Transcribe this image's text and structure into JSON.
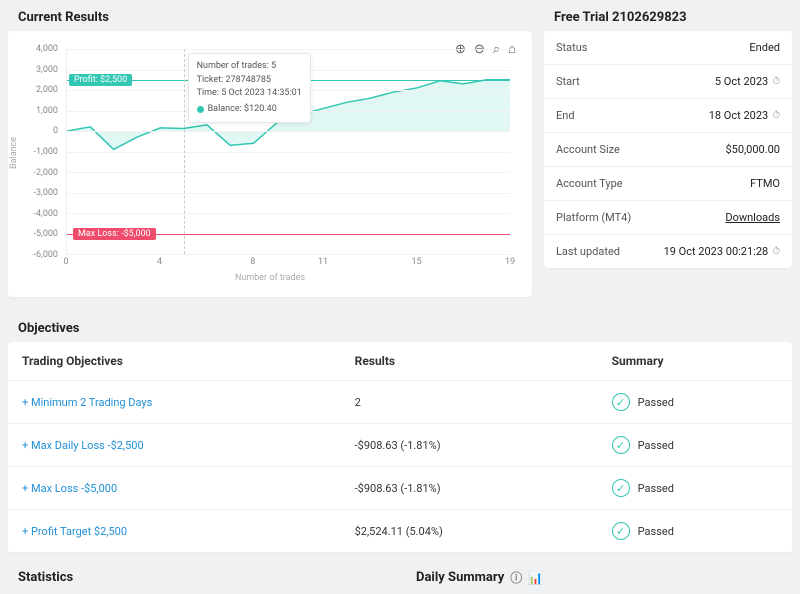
{
  "titles": {
    "current_results": "Current Results",
    "free_trial": "Free Trial 2102629823",
    "objectives": "Objectives",
    "statistics": "Statistics",
    "daily_summary": "Daily Summary"
  },
  "chart": {
    "type": "line+area",
    "x_label": "Number of trades",
    "y_label": "Balance",
    "xlim": [
      0,
      19
    ],
    "ylim": [
      -6000,
      4000
    ],
    "ytick_step": 1000,
    "y_ticks": [
      "4,000",
      "3,000",
      "2,000",
      "1,000",
      "0",
      "-1,000",
      "-2,000",
      "-3,000",
      "-4,000",
      "-5,000",
      "-6,000"
    ],
    "x_ticks": [
      {
        "pos": 0,
        "label": "0"
      },
      {
        "pos": 4,
        "label": "4"
      },
      {
        "pos": 8,
        "label": "8"
      },
      {
        "pos": 11,
        "label": "11"
      },
      {
        "pos": 15,
        "label": "15"
      },
      {
        "pos": 19,
        "label": "19"
      }
    ],
    "series_color": "#31c7b2",
    "area_opacity": 0.15,
    "grid_color": "#f2f2f2",
    "background_color": "#ffffff",
    "profit_line": {
      "value": 2500,
      "label": "Profit: $2,500",
      "color": "#31c7b2"
    },
    "maxloss_line": {
      "value": -5000,
      "label": "Max Loss: -$5,000",
      "color": "#ef4b6c"
    },
    "hover_x": 5,
    "tooltip": {
      "line1": "Number of trades: 5",
      "line2": "Ticket: 278748785",
      "line3": "Time: 5 Oct 2023 14:35:01",
      "balance_label": "Balance: $120.40"
    },
    "data": [
      {
        "x": 0,
        "y": 0
      },
      {
        "x": 1,
        "y": 200
      },
      {
        "x": 2,
        "y": -900
      },
      {
        "x": 3,
        "y": -300
      },
      {
        "x": 4,
        "y": 150
      },
      {
        "x": 5,
        "y": 120
      },
      {
        "x": 6,
        "y": 300
      },
      {
        "x": 7,
        "y": -700
      },
      {
        "x": 8,
        "y": -600
      },
      {
        "x": 9,
        "y": 400
      },
      {
        "x": 10,
        "y": 800
      },
      {
        "x": 11,
        "y": 1100
      },
      {
        "x": 12,
        "y": 1400
      },
      {
        "x": 13,
        "y": 1600
      },
      {
        "x": 14,
        "y": 1900
      },
      {
        "x": 15,
        "y": 2100
      },
      {
        "x": 16,
        "y": 2450
      },
      {
        "x": 17,
        "y": 2300
      },
      {
        "x": 18,
        "y": 2500
      },
      {
        "x": 19,
        "y": 2500
      }
    ]
  },
  "trial": {
    "rows": [
      {
        "label": "Status",
        "value": "Ended",
        "icon": null,
        "link": false
      },
      {
        "label": "Start",
        "value": "5 Oct 2023",
        "icon": "clock",
        "link": false
      },
      {
        "label": "End",
        "value": "18 Oct 2023",
        "icon": "clock",
        "link": false
      },
      {
        "label": "Account Size",
        "value": "$50,000.00",
        "icon": null,
        "link": false
      },
      {
        "label": "Account Type",
        "value": "FTMO",
        "icon": null,
        "link": false
      },
      {
        "label": "Platform (MT4)",
        "value": "Downloads",
        "icon": null,
        "link": true
      },
      {
        "label": "Last updated",
        "value": "19 Oct 2023 00:21:28",
        "icon": "clock",
        "link": false
      }
    ]
  },
  "objectives_table": {
    "headers": {
      "a": "Trading Objectives",
      "b": "Results",
      "c": "Summary"
    },
    "rows": [
      {
        "objective": "Minimum 2 Trading Days",
        "result": "2",
        "summary": "Passed"
      },
      {
        "objective": "Max Daily Loss -$2,500",
        "result": "-$908.63 (-1.81%)",
        "summary": "Passed"
      },
      {
        "objective": "Max Loss -$5,000",
        "result": "-$908.63 (-1.81%)",
        "summary": "Passed"
      },
      {
        "objective": "Profit Target $2,500",
        "result": "$2,524.11 (5.04%)",
        "summary": "Passed"
      }
    ]
  },
  "colors": {
    "accent": "#31c7b2",
    "danger": "#ef4b6c",
    "link": "#1f8fd6",
    "bg": "#f0f1f3"
  }
}
